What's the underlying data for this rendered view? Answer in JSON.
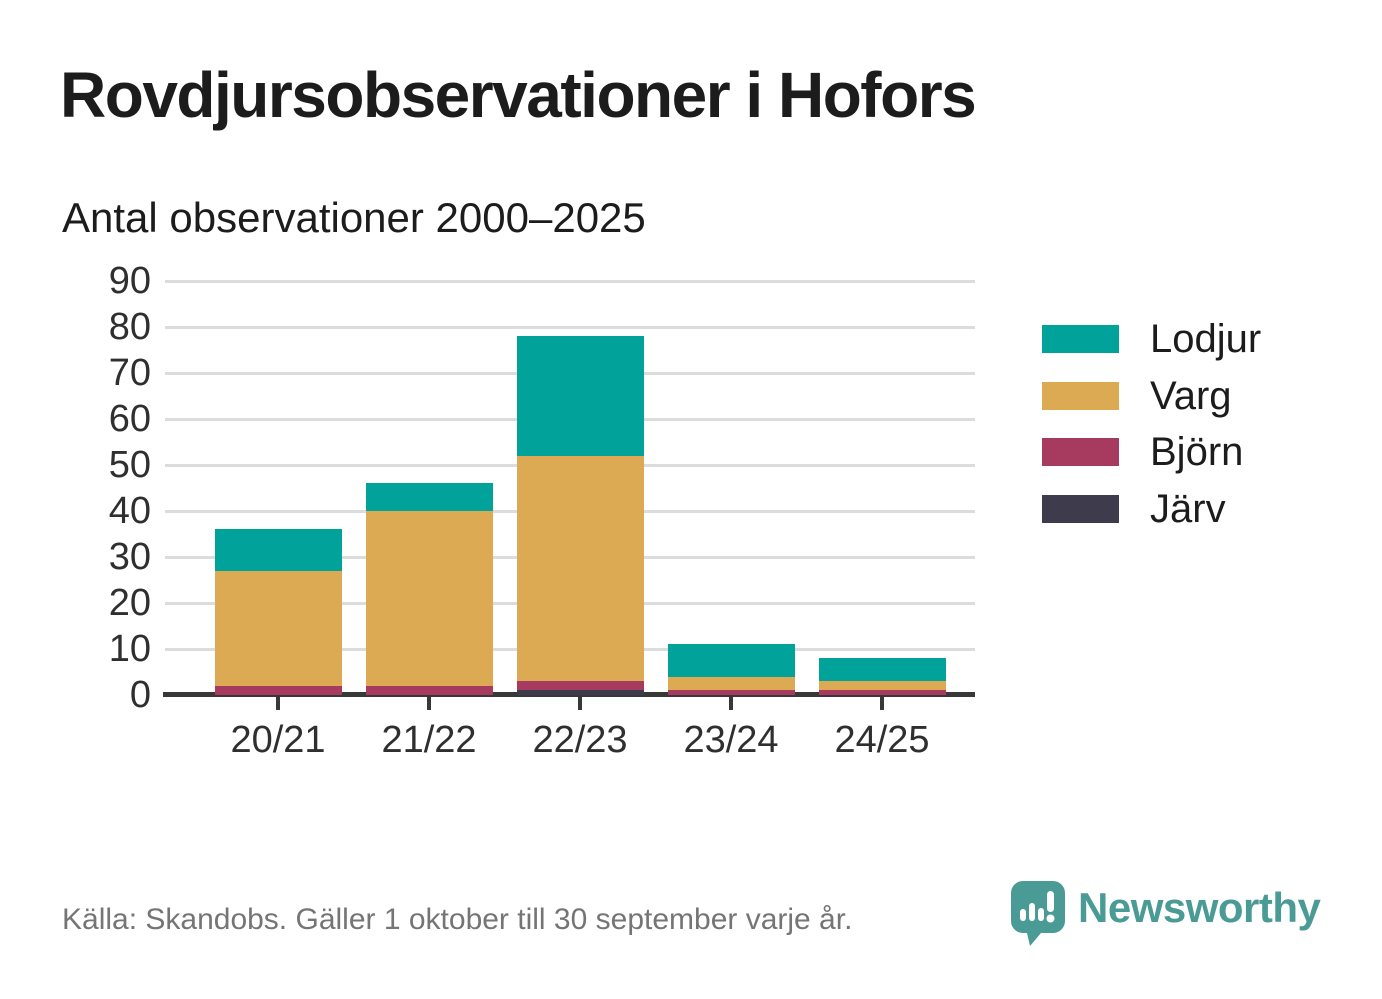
{
  "title": "Rovdjursobservationer i Hofors",
  "subtitle": "Antal observationer 2000–2025",
  "footer": {
    "source": "Källa: Skandobs. Gäller 1 oktober till 30 september varje år.",
    "brand": "Newsworthy"
  },
  "colors": {
    "lodjur": "#00a29a",
    "varg": "#dbaa52",
    "bjorn": "#a63a5f",
    "jarv": "#3d3b4c",
    "grid": "#dcdcdc",
    "axis": "#383838",
    "text": "#1c1c1c",
    "muted": "#757575",
    "brand_teal": "#4a9b96"
  },
  "chart_data": {
    "type": "bar",
    "stacked": true,
    "title": "Rovdjursobservationer i Hofors",
    "subtitle": "Antal observationer 2000–2025",
    "categories": [
      "20/21",
      "21/22",
      "22/23",
      "23/24",
      "24/25"
    ],
    "series": [
      {
        "name": "Lodjur",
        "color": "#00a29a",
        "values": [
          9,
          6,
          26,
          7,
          5
        ]
      },
      {
        "name": "Varg",
        "color": "#dbaa52",
        "values": [
          25,
          38,
          49,
          3,
          2
        ]
      },
      {
        "name": "Björn",
        "color": "#a63a5f",
        "values": [
          2,
          2,
          2,
          1,
          1
        ]
      },
      {
        "name": "Järv",
        "color": "#3d3b4c",
        "values": [
          0,
          0,
          1,
          0,
          0
        ]
      }
    ],
    "totals": [
      36,
      46,
      78,
      11,
      8
    ],
    "xlabel": "",
    "ylabel": "",
    "ylim": [
      0,
      90
    ],
    "yticks": [
      0,
      10,
      20,
      30,
      40,
      50,
      60,
      70,
      80,
      90
    ],
    "grid": "horizontal",
    "legend_position": "right"
  }
}
